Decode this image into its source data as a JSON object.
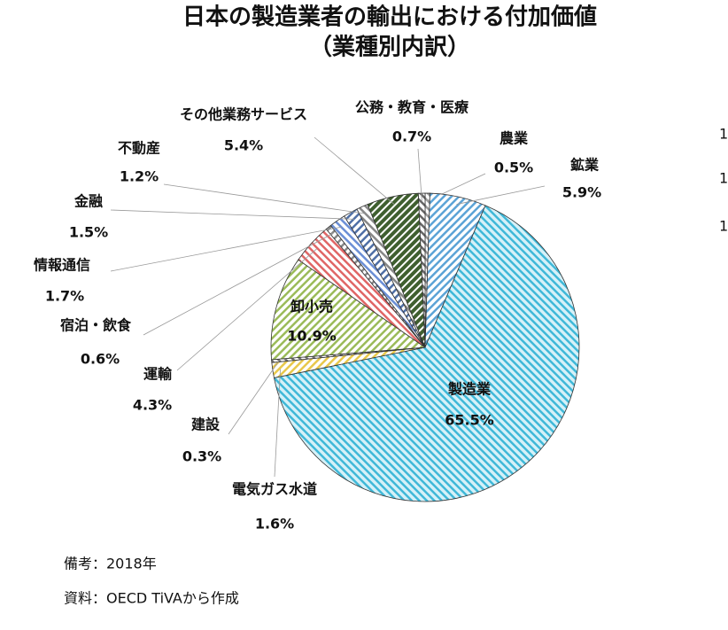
{
  "chart_data": {
    "type": "pie",
    "title": "日本の製造業者の輸出における付加価値",
    "subtitle": "（業種別内訳）",
    "categories": [
      "農業",
      "鉱業",
      "製造業",
      "電気ガス水道",
      "建設",
      "卸小売",
      "運輸",
      "宿泊・飲食",
      "情報通信",
      "金融",
      "不動産",
      "その他業務サービス",
      "公務・教育・医療"
    ],
    "values": [
      0.5,
      5.9,
      65.5,
      1.6,
      0.3,
      10.9,
      4.3,
      0.6,
      1.7,
      1.5,
      1.2,
      5.4,
      0.7
    ],
    "value_labels": [
      "0.5%",
      "5.9%",
      "65.5%",
      "1.6%",
      "0.3%",
      "10.9%",
      "4.3%",
      "0.6%",
      "1.7%",
      "1.5%",
      "1.2%",
      "5.4%",
      "0.7%"
    ],
    "colors": [
      "#9a9a9a",
      "#5ba3d6",
      "#3fb8d8",
      "#e8c84a",
      "#777777",
      "#9bbb59",
      "#e06666",
      "#888888",
      "#6b8fd6",
      "#4f6fa6",
      "#888888",
      "#3f5f2f",
      "#666666"
    ],
    "notes": [
      "備考：2018年",
      "資料：OECD TiVAから作成"
    ]
  },
  "edge_fragments": [
    "1",
    "1",
    "1"
  ]
}
